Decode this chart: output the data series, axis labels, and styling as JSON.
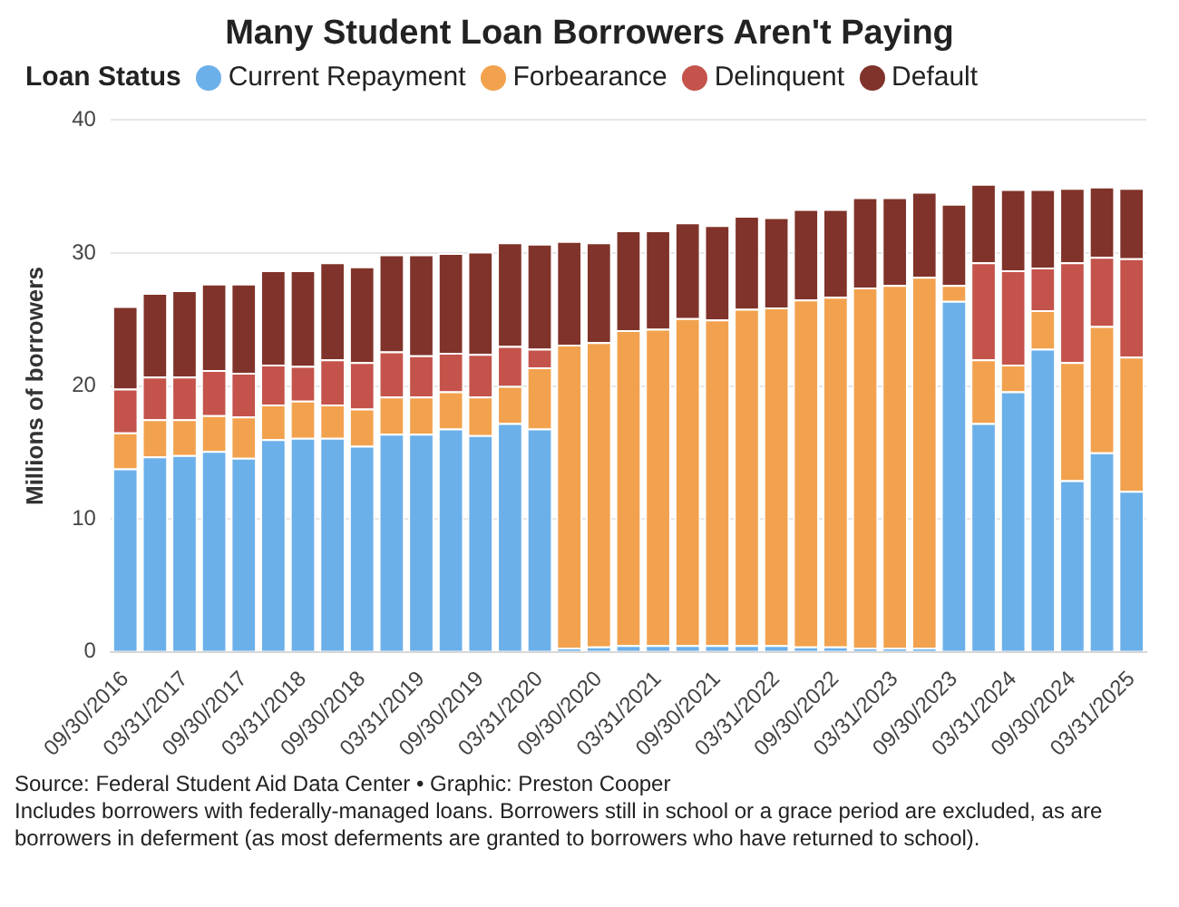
{
  "chart_data": {
    "type": "bar",
    "stacked": true,
    "title": "Many Student Loan Borrowers Aren't Paying",
    "legend_title": "Loan Status",
    "legend": "top left",
    "ylabel": "Millions of borrowers",
    "ylim": [
      0,
      40
    ],
    "yticks": [
      0,
      10,
      20,
      30,
      40
    ],
    "grid": "y",
    "categories": [
      "09/30/2016",
      null,
      "03/31/2017",
      null,
      "09/30/2017",
      null,
      "03/31/2018",
      null,
      "09/30/2018",
      null,
      "03/31/2019",
      null,
      "09/30/2019",
      null,
      "03/31/2020",
      null,
      "09/30/2020",
      null,
      "03/31/2021",
      null,
      "09/30/2021",
      null,
      "03/31/2022",
      null,
      "09/30/2022",
      null,
      "03/31/2023",
      null,
      "09/30/2023",
      null,
      "03/31/2024",
      null,
      "09/30/2024",
      null,
      "03/31/2025"
    ],
    "series": [
      {
        "name": "Current Repayment",
        "color": "#6cb0ea",
        "values": [
          13.8,
          14.7,
          14.8,
          15.1,
          14.6,
          16.0,
          16.1,
          16.1,
          15.5,
          16.4,
          16.4,
          16.8,
          16.3,
          17.2,
          16.8,
          0.3,
          0.4,
          0.5,
          0.5,
          0.5,
          0.5,
          0.5,
          0.5,
          0.4,
          0.4,
          0.3,
          0.3,
          0.3,
          26.4,
          17.2,
          19.6,
          22.8,
          12.9,
          15.0,
          12.1
        ]
      },
      {
        "name": "Forbearance",
        "color": "#f2a24e",
        "values": [
          2.7,
          2.8,
          2.7,
          2.7,
          3.1,
          2.6,
          2.8,
          2.5,
          2.8,
          2.8,
          2.8,
          2.8,
          2.9,
          2.8,
          4.6,
          22.8,
          22.9,
          23.7,
          23.8,
          24.6,
          24.5,
          25.3,
          25.4,
          26.1,
          26.3,
          27.1,
          27.3,
          27.9,
          1.2,
          4.8,
          2.0,
          2.9,
          8.9,
          9.5,
          10.1
        ]
      },
      {
        "name": "Delinquent",
        "color": "#c4534b",
        "values": [
          3.3,
          3.2,
          3.2,
          3.4,
          3.3,
          3.0,
          2.6,
          3.4,
          3.5,
          3.4,
          3.1,
          2.9,
          3.2,
          3.0,
          1.4,
          null,
          null,
          null,
          null,
          null,
          null,
          null,
          null,
          null,
          null,
          null,
          null,
          null,
          null,
          7.3,
          7.1,
          3.2,
          7.5,
          5.2,
          7.4
        ]
      },
      {
        "name": "Default",
        "color": "#80332a",
        "values": [
          6.2,
          6.3,
          6.5,
          6.5,
          6.7,
          7.1,
          7.2,
          7.3,
          7.2,
          7.3,
          7.6,
          7.5,
          7.7,
          7.8,
          7.9,
          7.8,
          7.5,
          7.5,
          7.4,
          7.2,
          7.1,
          7.0,
          6.8,
          6.8,
          6.6,
          6.8,
          6.6,
          6.4,
          6.1,
          5.9,
          6.1,
          5.9,
          5.6,
          5.3,
          5.3
        ]
      }
    ],
    "annotations": [
      "Source: Federal Student Aid Data Center • Graphic: Preston Cooper",
      "Includes borrowers with federally-managed loans. Borrowers still in school or a grace period are excluded, as are borrowers in deferment (as most deferments are granted to borrowers who have returned to school)."
    ]
  }
}
